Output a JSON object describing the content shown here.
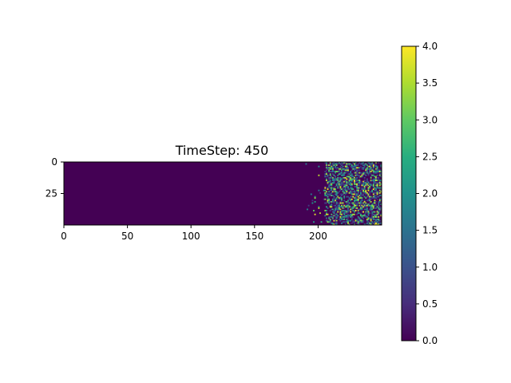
{
  "chart_data": {
    "type": "heatmap",
    "title": "TimeStep: 450",
    "grid": false,
    "colormap": "viridis",
    "x_range": [
      0,
      250
    ],
    "y_range": [
      0,
      50
    ],
    "y_inverted": true,
    "x_ticks": [
      0,
      50,
      100,
      150,
      200
    ],
    "y_ticks": [
      0,
      25
    ],
    "colorbar": {
      "range": [
        0.0,
        4.0
      ],
      "ticks": [
        "0.0",
        "0.5",
        "1.0",
        "1.5",
        "2.0",
        "2.5",
        "3.0",
        "3.5",
        "4.0"
      ],
      "tick_values": [
        0.0,
        0.5,
        1.0,
        1.5,
        2.0,
        2.5,
        3.0,
        3.5,
        4.0
      ]
    },
    "background_value": 0,
    "active_region": {
      "x_from": 185,
      "x_to": 250,
      "dense_from": 205,
      "max_value": 4
    }
  }
}
